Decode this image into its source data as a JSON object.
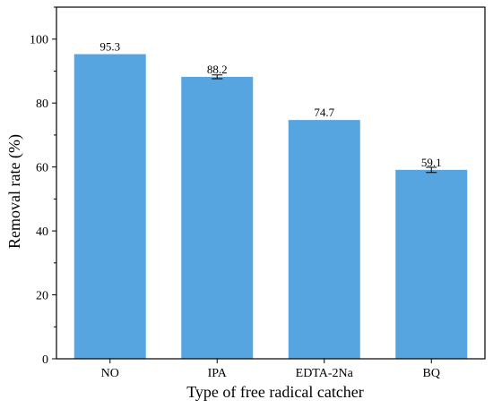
{
  "chart_data": {
    "type": "bar",
    "categories": [
      "NO",
      "IPA",
      "EDTA-2Na",
      "BQ"
    ],
    "values": [
      95.3,
      88.2,
      74.7,
      59.1
    ],
    "error": [
      0.0,
      0.6,
      0.0,
      0.8
    ],
    "data_labels": [
      "95.3",
      "88.2",
      "74.7",
      "59.1"
    ],
    "title": "",
    "xlabel": "Type of free radical catcher",
    "ylabel": "Removal rate (%)",
    "ylim": [
      0,
      110
    ],
    "yticks": [
      0,
      20,
      40,
      60,
      80,
      100
    ],
    "grid": false,
    "legend": "none",
    "colors": {
      "bar": "#56A5E0",
      "axis": "#000000",
      "error_bar": "#000000"
    }
  }
}
